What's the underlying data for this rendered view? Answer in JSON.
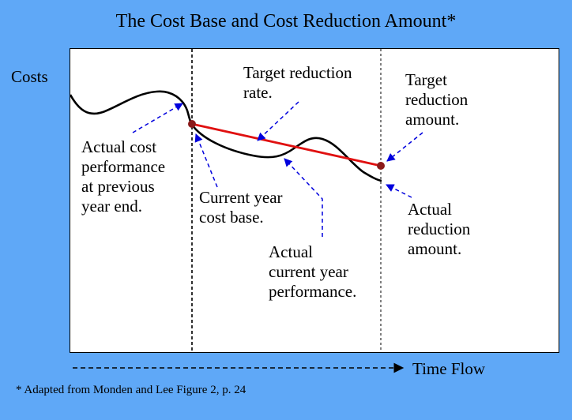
{
  "title": "The Cost Base and Cost Reduction Amount*",
  "y_axis_label": "Costs",
  "x_axis_label": "Time Flow",
  "footnote": "* Adapted from Monden and Lee Figure 2, p. 24",
  "labels": {
    "actual_cost_prev": [
      "Actual cost",
      "performance",
      "at previous",
      "year end."
    ],
    "current_cost_base": [
      "Current year",
      "cost base."
    ],
    "target_reduction_rate": [
      "Target reduction",
      "rate."
    ],
    "target_reduction_amount": [
      "Target",
      "reduction",
      "amount."
    ],
    "actual_current_perf": [
      "Actual",
      "current year",
      "performance."
    ],
    "actual_reduction_amount": [
      "Actual",
      "reduction",
      "amount."
    ]
  },
  "colors": {
    "background": "#5fa8f7",
    "panel": "#ffffff",
    "actual_curve": "#000000",
    "target_line": "#e01010",
    "markers": "#8b1a1a",
    "arrows": "#0000dd"
  }
}
